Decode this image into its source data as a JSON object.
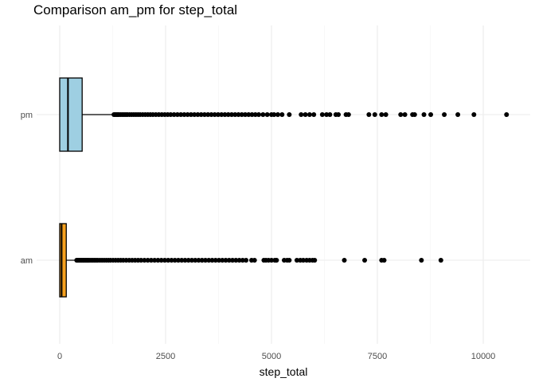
{
  "chart_data": {
    "type": "boxplot",
    "orientation": "horizontal",
    "title": "Comparison am_pm for step_total",
    "xlabel": "step_total",
    "ylabel": "",
    "xlim": [
      -600,
      11100
    ],
    "x_ticks": [
      0,
      2500,
      5000,
      7500,
      10000
    ],
    "x_tick_labels": [
      "0",
      "2500",
      "5000",
      "7500",
      "10000"
    ],
    "grid": true,
    "legend": "none",
    "categories": [
      "am",
      "pm"
    ],
    "boxes": [
      {
        "category": "am",
        "fill": "#F7A11E",
        "min": 0,
        "q1": 0,
        "median": 45,
        "q3": 155,
        "whisker_high": 390,
        "outliers": [
          400,
          430,
          460,
          490,
          520,
          550,
          580,
          610,
          640,
          670,
          700,
          740,
          780,
          820,
          860,
          900,
          950,
          1000,
          1050,
          1100,
          1150,
          1200,
          1260,
          1320,
          1380,
          1440,
          1500,
          1570,
          1640,
          1710,
          1780,
          1850,
          1920,
          2000,
          2080,
          2160,
          2240,
          2320,
          2400,
          2480,
          2560,
          2640,
          2720,
          2800,
          2880,
          2960,
          3040,
          3120,
          3200,
          3280,
          3360,
          3440,
          3520,
          3600,
          3680,
          3760,
          3840,
          3920,
          4000,
          4080,
          4160,
          4240,
          4320,
          4400,
          4530,
          4600,
          4820,
          4870,
          4930,
          5000,
          5080,
          5120,
          5300,
          5370,
          5420,
          5600,
          5680,
          5750,
          5830,
          5900,
          5970,
          6020,
          6720,
          7200,
          7600,
          7660,
          8540,
          9000
        ]
      },
      {
        "category": "pm",
        "fill": "#9ECFE2",
        "min": 0,
        "q1": 0,
        "median": 195,
        "q3": 530,
        "whisker_high": 1260,
        "outliers": [
          1280,
          1310,
          1340,
          1370,
          1400,
          1440,
          1480,
          1520,
          1560,
          1600,
          1650,
          1700,
          1750,
          1800,
          1850,
          1900,
          1960,
          2020,
          2080,
          2140,
          2200,
          2270,
          2340,
          2410,
          2480,
          2550,
          2620,
          2700,
          2780,
          2860,
          2940,
          3020,
          3100,
          3180,
          3260,
          3340,
          3420,
          3500,
          3580,
          3660,
          3740,
          3820,
          3900,
          3980,
          4060,
          4140,
          4220,
          4300,
          4380,
          4460,
          4540,
          4620,
          4700,
          4800,
          4900,
          5000,
          5060,
          5150,
          5250,
          5420,
          5700,
          5800,
          5900,
          6000,
          6200,
          6300,
          6380,
          6520,
          6580,
          6760,
          6820,
          7300,
          7440,
          7600,
          7700,
          8050,
          8150,
          8330,
          8380,
          8600,
          8760,
          9080,
          9400,
          9780,
          10550
        ]
      }
    ]
  }
}
